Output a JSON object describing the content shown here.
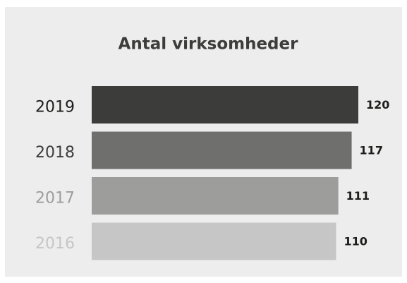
{
  "chart_data": {
    "type": "barh",
    "title": "Antal virksomheder",
    "categories": [
      "2019",
      "2018",
      "2017",
      "2016"
    ],
    "values": [
      120,
      117,
      111,
      110
    ],
    "colors": [
      "#3c3c3b",
      "#6f6f6e",
      "#9d9d9c",
      "#c6c6c6"
    ],
    "label_colors": [
      "#1d1d1b",
      "#3c3c3b",
      "#9d9d9c",
      "#c6c6c6"
    ]
  }
}
